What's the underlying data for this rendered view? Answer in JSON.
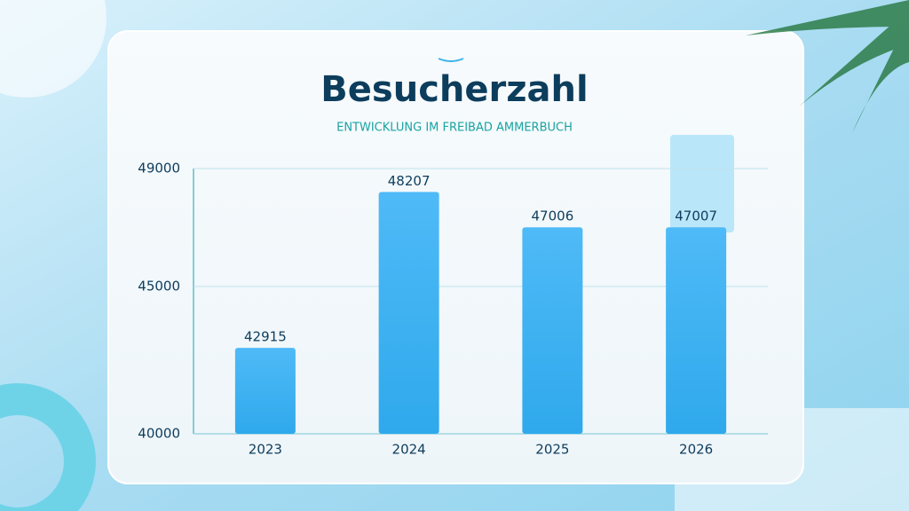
{
  "chart_data": {
    "type": "bar",
    "title": "Besucherzahl",
    "subtitle": "ENTWICKLUNG IM FREIBAD AMMERBUCH",
    "categories": [
      "2023",
      "2024",
      "2025",
      "2026"
    ],
    "values": [
      42915,
      48207,
      47006,
      47007
    ],
    "color": "#45b6f5",
    "ylim": [
      40000,
      49000
    ],
    "yticks": [
      40000,
      45000,
      49000
    ],
    "grid": true
  }
}
